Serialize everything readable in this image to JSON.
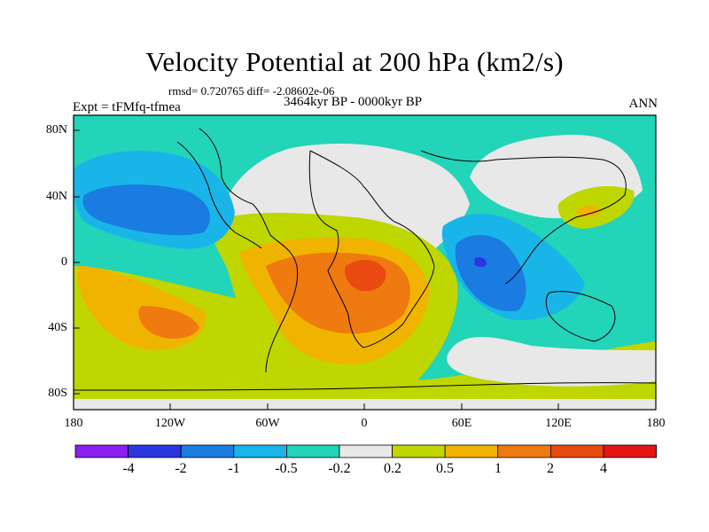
{
  "title": "Velocity Potential at 200 hPa (km2/s)",
  "stats_line": "rmsd= 0.720765 diff= -2.08602e-06",
  "period": "3464kyr BP - 0000kyr BP",
  "experiment": "Expt = tFMfq-tfmea",
  "season": "ANN",
  "lat_labels": [
    "80N",
    "40N",
    "0",
    "40S",
    "80S"
  ],
  "lon_labels": [
    "180",
    "120W",
    "60W",
    "0",
    "60E",
    "120E",
    "180"
  ],
  "colorbar": {
    "labels": [
      "-4",
      "-2",
      "-1",
      "-0.5",
      "-0.2",
      "0.2",
      "0.5",
      "1",
      "2",
      "4"
    ],
    "colors": [
      "#8a1ff0",
      "#2b35e0",
      "#1a7be0",
      "#19b5e8",
      "#22d4b8",
      "#e8e8e8",
      "#bfd600",
      "#f0b400",
      "#ee7a10",
      "#e84a10",
      "#e51515"
    ]
  }
}
